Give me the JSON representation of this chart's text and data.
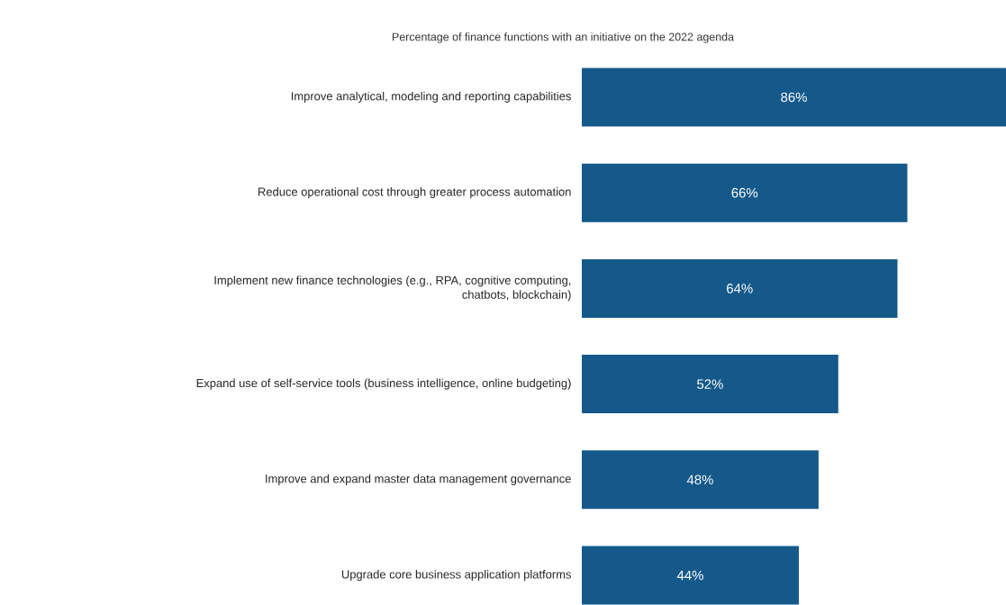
{
  "chart_data": {
    "type": "bar",
    "orientation": "horizontal",
    "title": "Percentage of finance functions with an initiative on the 2022 agenda",
    "categories": [
      "Improve analytical, modeling and reporting capabilities",
      "Reduce operational cost through greater process automation",
      "Implement new finance technologies (e.g., RPA, cognitive computing, chatbots, blockchain)",
      "Expand use of self-service tools (business intelligence, online budgeting)",
      "Improve and expand master data management governance",
      "Upgrade core business application platforms"
    ],
    "values": [
      86,
      66,
      64,
      52,
      48,
      44
    ],
    "value_labels": [
      "86%",
      "66%",
      "64%",
      "52%",
      "48%",
      "44%"
    ],
    "color": "#15598a"
  }
}
